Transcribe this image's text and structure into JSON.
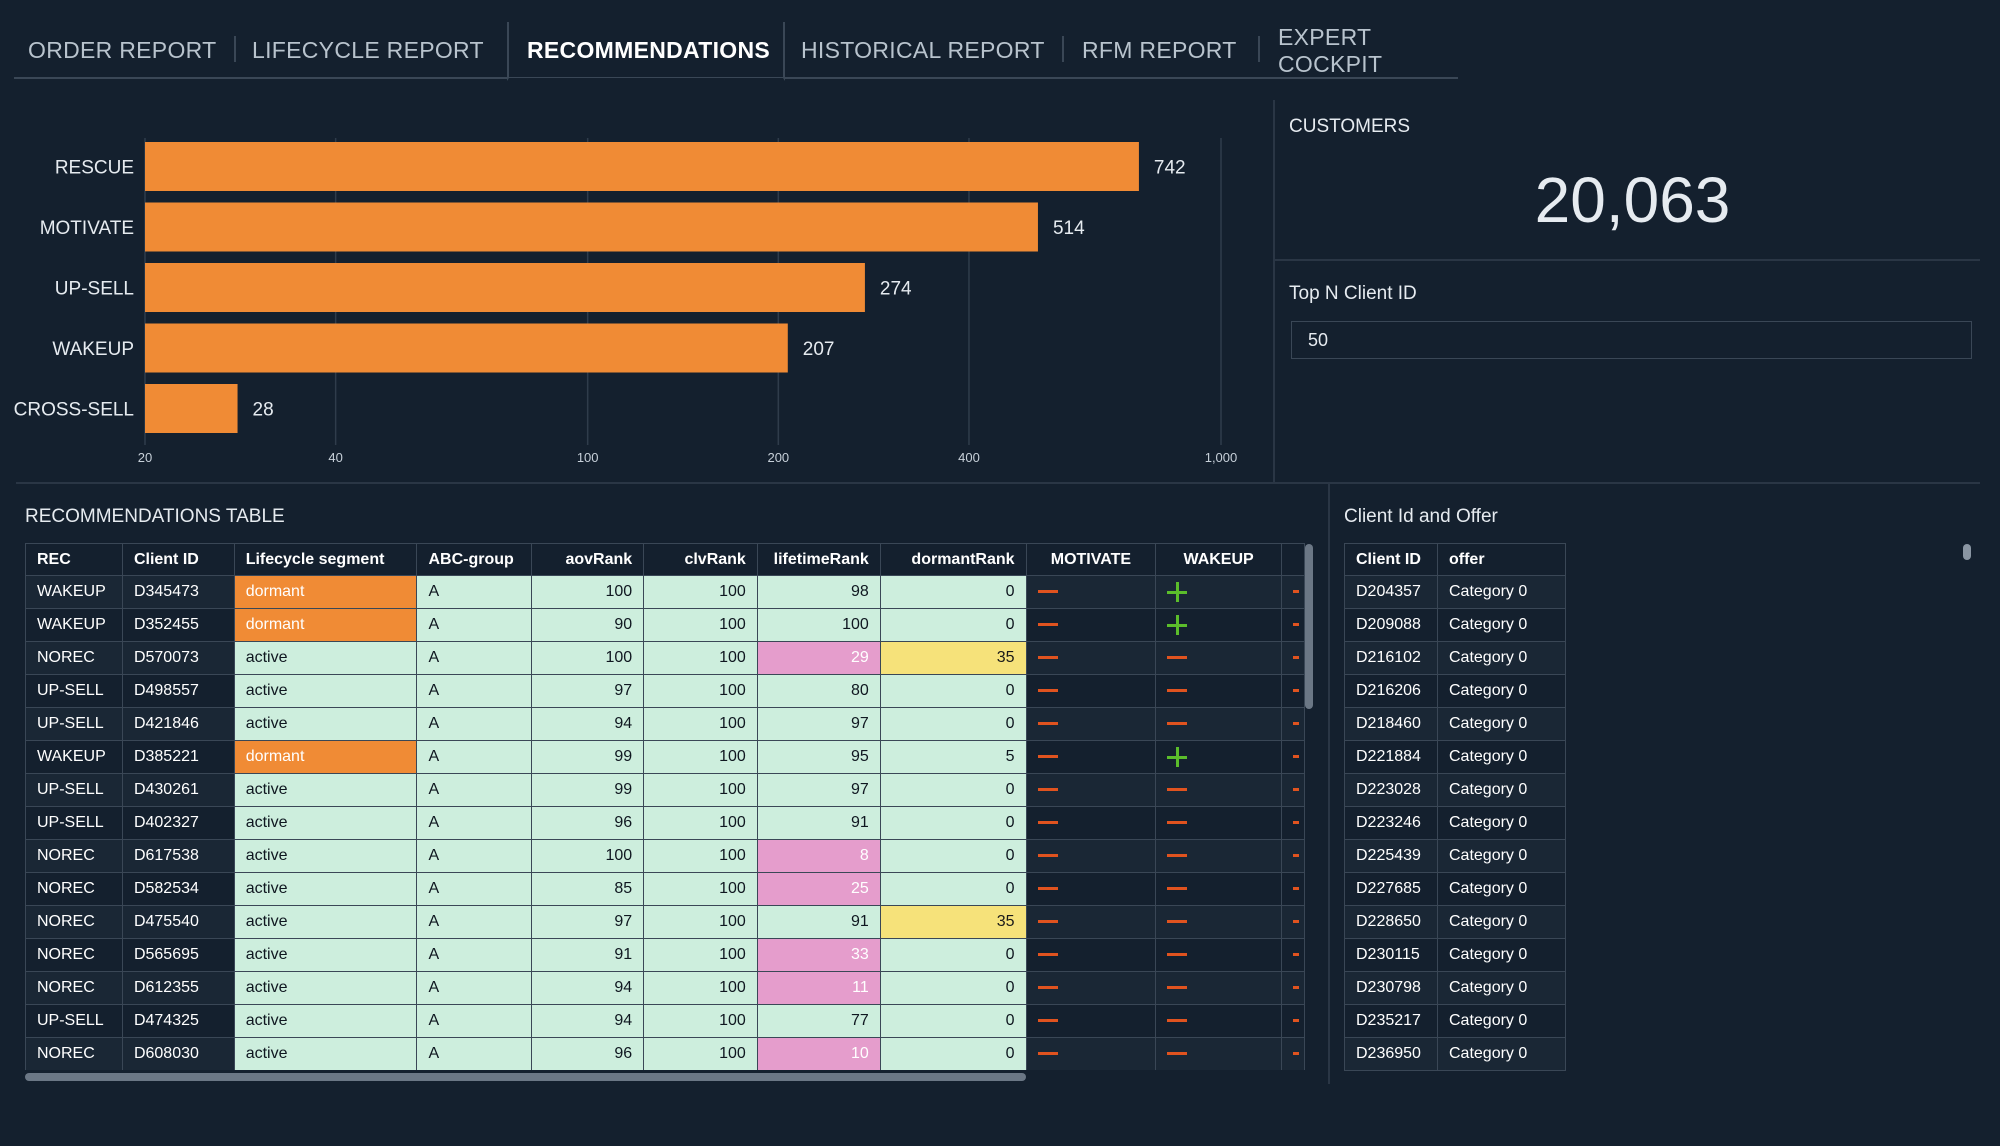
{
  "tabs": [
    {
      "label": "ORDER REPORT"
    },
    {
      "label": "LIFECYCLE REPORT"
    },
    {
      "label": "RECOMMENDATIONS"
    },
    {
      "label": "HISTORICAL REPORT"
    },
    {
      "label": "RFM REPORT"
    },
    {
      "label": "EXPERT COCKPIT"
    }
  ],
  "kpi": {
    "title": "CUSTOMERS",
    "value": "20,063"
  },
  "parameter": {
    "title": "Top N Client ID",
    "value": "50"
  },
  "chart_data": {
    "type": "bar",
    "orientation": "horizontal",
    "scale": "log",
    "categories": [
      "RESCUE",
      "MOTIVATE",
      "UP-SELL",
      "WAKEUP",
      "CROSS-SELL"
    ],
    "values": [
      742,
      514,
      274,
      207,
      28
    ],
    "x_ticks": [
      20,
      40,
      100,
      200,
      400,
      1000
    ],
    "x_tick_labels": [
      "20",
      "40",
      "100",
      "200",
      "400",
      "1,000"
    ],
    "xlim": [
      20,
      1000
    ],
    "grid": true,
    "bar_color": "#f08b35"
  },
  "recommendations": {
    "title": "RECOMMENDATIONS TABLE",
    "columns": [
      "REC",
      "Client ID",
      "Lifecycle segment",
      "ABC-group",
      "aovRank",
      "clvRank",
      "lifetimeRank",
      "dormantRank",
      "MOTIVATE",
      "WAKEUP"
    ],
    "rows": [
      [
        "WAKEUP",
        "D345473",
        "dormant",
        "A",
        "100",
        "100",
        "98",
        "0",
        "-",
        "+"
      ],
      [
        "WAKEUP",
        "D352455",
        "dormant",
        "A",
        "90",
        "100",
        "100",
        "0",
        "-",
        "+"
      ],
      [
        "NOREC",
        "D570073",
        "active",
        "A",
        "100",
        "100",
        "29",
        "35",
        "-",
        "-"
      ],
      [
        "UP-SELL",
        "D498557",
        "active",
        "A",
        "97",
        "100",
        "80",
        "0",
        "-",
        "-"
      ],
      [
        "UP-SELL",
        "D421846",
        "active",
        "A",
        "94",
        "100",
        "97",
        "0",
        "-",
        "-"
      ],
      [
        "WAKEUP",
        "D385221",
        "dormant",
        "A",
        "99",
        "100",
        "95",
        "5",
        "-",
        "+"
      ],
      [
        "UP-SELL",
        "D430261",
        "active",
        "A",
        "99",
        "100",
        "97",
        "0",
        "-",
        "-"
      ],
      [
        "UP-SELL",
        "D402327",
        "active",
        "A",
        "96",
        "100",
        "91",
        "0",
        "-",
        "-"
      ],
      [
        "NOREC",
        "D617538",
        "active",
        "A",
        "100",
        "100",
        "8",
        "0",
        "-",
        "-"
      ],
      [
        "NOREC",
        "D582534",
        "active",
        "A",
        "85",
        "100",
        "25",
        "0",
        "-",
        "-"
      ],
      [
        "NOREC",
        "D475540",
        "active",
        "A",
        "97",
        "100",
        "91",
        "35",
        "-",
        "-"
      ],
      [
        "NOREC",
        "D565695",
        "active",
        "A",
        "91",
        "100",
        "33",
        "0",
        "-",
        "-"
      ],
      [
        "NOREC",
        "D612355",
        "active",
        "A",
        "94",
        "100",
        "11",
        "0",
        "-",
        "-"
      ],
      [
        "UP-SELL",
        "D474325",
        "active",
        "A",
        "94",
        "100",
        "77",
        "0",
        "-",
        "-"
      ],
      [
        "NOREC",
        "D608030",
        "active",
        "A",
        "96",
        "100",
        "10",
        "0",
        "-",
        "-"
      ]
    ]
  },
  "offers": {
    "title": "Client Id and Offer",
    "columns": [
      "Client ID",
      "offer"
    ],
    "rows": [
      [
        "D204357",
        "Category 0"
      ],
      [
        "D209088",
        "Category 0"
      ],
      [
        "D216102",
        "Category 0"
      ],
      [
        "D216206",
        "Category 0"
      ],
      [
        "D218460",
        "Category 0"
      ],
      [
        "D221884",
        "Category 0"
      ],
      [
        "D223028",
        "Category 0"
      ],
      [
        "D223246",
        "Category 0"
      ],
      [
        "D225439",
        "Category 0"
      ],
      [
        "D227685",
        "Category 0"
      ],
      [
        "D228650",
        "Category 0"
      ],
      [
        "D230115",
        "Category 0"
      ],
      [
        "D230798",
        "Category 0"
      ],
      [
        "D235217",
        "Category 0"
      ],
      [
        "D236950",
        "Category 0"
      ]
    ]
  },
  "colors": {
    "background": "#14202e",
    "bar": "#f08b35",
    "dormant": "#f08b35",
    "low_rank": "#e59dcc",
    "dormant_rank": "#f6e27a",
    "light_cell": "#cdeedd",
    "minus": "#e0531f",
    "plus": "#5bbd2b"
  }
}
